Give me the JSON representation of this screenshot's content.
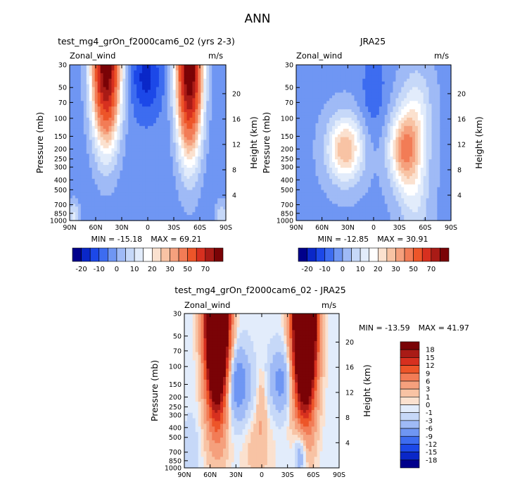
{
  "figure": {
    "title": "ANN"
  },
  "palettes": {
    "full": [
      "#00008b",
      "#0a27c8",
      "#1c48e8",
      "#3d6cf0",
      "#6f96f3",
      "#9fbaf6",
      "#c6d8f8",
      "#e2ecfb",
      "#ffffff",
      "#fbe1cf",
      "#f8c3a4",
      "#f5a07d",
      "#f27c56",
      "#ed5529",
      "#d7301f",
      "#a91b16",
      "#7a0306"
    ],
    "diff": [
      "#00008b",
      "#0a27c8",
      "#1c48e8",
      "#3d6cf0",
      "#6f96f3",
      "#9fbaf6",
      "#c6d8f8",
      "#e2ecfb",
      "#fbe1cf",
      "#f8c3a4",
      "#f5a07d",
      "#f27c56",
      "#ed5529",
      "#d7301f",
      "#a91b16",
      "#7a0306"
    ]
  },
  "chart_data": [
    {
      "id": "model",
      "type": "contour",
      "title": "test_mg4_grOn_f2000cam6_02 (yrs 2-3)",
      "variable": "Zonal_wind",
      "units": "m/s",
      "ylabel": "Pressure (mb)",
      "ylabel_right": "Height (km)",
      "x_ticks": [
        "90N",
        "60N",
        "30N",
        "0",
        "30S",
        "60S",
        "90S"
      ],
      "y_ticks": [
        "30",
        "50",
        "70",
        "100",
        "150",
        "200",
        "250",
        "300",
        "400",
        "500",
        "700",
        "850",
        "1000"
      ],
      "height_ticks": [
        "20",
        "16",
        "12",
        "8",
        "4"
      ],
      "min_label": "MIN = -15.18",
      "max_label": "MAX = 69.21",
      "colorbar_labels": [
        "-20",
        "-10",
        "0",
        "10",
        "20",
        "30",
        "50",
        "70"
      ],
      "field": {
        "background": -8,
        "blobs": [
          {
            "lat": 48,
            "lev": 30,
            "s_lat": 11,
            "s_p": 8,
            "amp": 88,
            "k": 1.0
          },
          {
            "lat": -48,
            "lev": 30,
            "s_lat": 10,
            "s_p": 9,
            "amp": 92,
            "k": 1.0
          },
          {
            "lat": 2,
            "lev": 40,
            "s_lat": 12,
            "s_p": 4,
            "amp": -14,
            "k": 1.0
          },
          {
            "lat": 85,
            "lev": 950,
            "s_lat": 5,
            "s_p": 2,
            "amp": 14,
            "k": 1.0
          },
          {
            "lat": -85,
            "lev": 950,
            "s_lat": 5,
            "s_p": 2,
            "amp": 12,
            "k": 1.0
          }
        ]
      }
    },
    {
      "id": "obs",
      "type": "contour",
      "title": "JRA25",
      "variable": "Zonal_wind",
      "units": "m/s",
      "ylabel": "Pressure (mb)",
      "ylabel_right": "Height (km)",
      "x_ticks": [
        "90N",
        "60N",
        "30N",
        "0",
        "30S",
        "60S",
        "90S"
      ],
      "y_ticks": [
        "30",
        "50",
        "70",
        "100",
        "150",
        "200",
        "250",
        "300",
        "400",
        "500",
        "700",
        "850",
        "1000"
      ],
      "height_ticks": [
        "20",
        "16",
        "12",
        "8",
        "4"
      ],
      "min_label": "MIN = -12.85",
      "max_label": "MAX = 30.91",
      "colorbar_labels": [
        "-20",
        "-10",
        "0",
        "10",
        "20",
        "30",
        "50",
        "70"
      ],
      "field": {
        "background": -6,
        "blobs": [
          {
            "lat": 33,
            "lev": 200,
            "s_lat": 14,
            "s_p": 3.5,
            "amp": 31,
            "k": 1.0
          },
          {
            "lat": -35,
            "lev": 200,
            "s_lat": 12,
            "s_p": 4,
            "amp": 32,
            "k": 1.0
          },
          {
            "lat": -50,
            "lev": 90,
            "s_lat": 12,
            "s_p": 5,
            "amp": 14,
            "k": 1.0
          },
          {
            "lat": -48,
            "lev": 500,
            "s_lat": 12,
            "s_p": 6,
            "amp": 12,
            "k": 1.0
          },
          {
            "lat": 0,
            "lev": 50,
            "s_lat": 10,
            "s_p": 5,
            "amp": -8,
            "k": 1.0
          }
        ]
      }
    },
    {
      "id": "diff",
      "type": "contour",
      "title": "test_mg4_grOn_f2000cam6_02 - JRA25",
      "variable": "Zonal_wind",
      "units": "m/s",
      "ylabel": "Pressure (mb)",
      "ylabel_right": "Height (km)",
      "x_ticks": [
        "90N",
        "60N",
        "30N",
        "0",
        "30S",
        "60S",
        "90S"
      ],
      "y_ticks": [
        "30",
        "50",
        "70",
        "100",
        "150",
        "200",
        "250",
        "300",
        "400",
        "500",
        "700",
        "850",
        "1000"
      ],
      "height_ticks": [
        "20",
        "16",
        "12",
        "8",
        "4"
      ],
      "min_label": "MIN = -13.59",
      "max_label": "MAX =  41.97",
      "colorbar_labels": [
        "18",
        "15",
        "12",
        "9",
        "6",
        "3",
        "1",
        "0",
        "-1",
        "-3",
        "-6",
        "-9",
        "-12",
        "-15",
        "-18"
      ],
      "field": {
        "background": -0.5,
        "blobs": [
          {
            "lat": 52,
            "lev": 30,
            "s_lat": 9,
            "s_p": 10,
            "amp": 55,
            "k": 1.0
          },
          {
            "lat": -50,
            "lev": 30,
            "s_lat": 9,
            "s_p": 10,
            "amp": 55,
            "k": 1.0
          },
          {
            "lat": 28,
            "lev": 150,
            "s_lat": 10,
            "s_p": 4,
            "amp": -9,
            "k": 1.0
          },
          {
            "lat": -22,
            "lev": 140,
            "s_lat": 9,
            "s_p": 3.5,
            "amp": -7,
            "k": 1.0
          },
          {
            "lat": 0,
            "lev": 250,
            "s_lat": 4,
            "s_p": 4,
            "amp": 3,
            "k": 1.0
          },
          {
            "lat": 5,
            "lev": 650,
            "s_lat": 12,
            "s_p": 4,
            "amp": 2.5,
            "k": 1.0
          },
          {
            "lat": -45,
            "lev": 700,
            "s_lat": 5,
            "s_p": 3,
            "amp": -7,
            "k": 1.0
          },
          {
            "lat": 82,
            "lev": 700,
            "s_lat": 6,
            "s_p": 4,
            "amp": -2,
            "k": 1.0
          }
        ]
      }
    }
  ]
}
